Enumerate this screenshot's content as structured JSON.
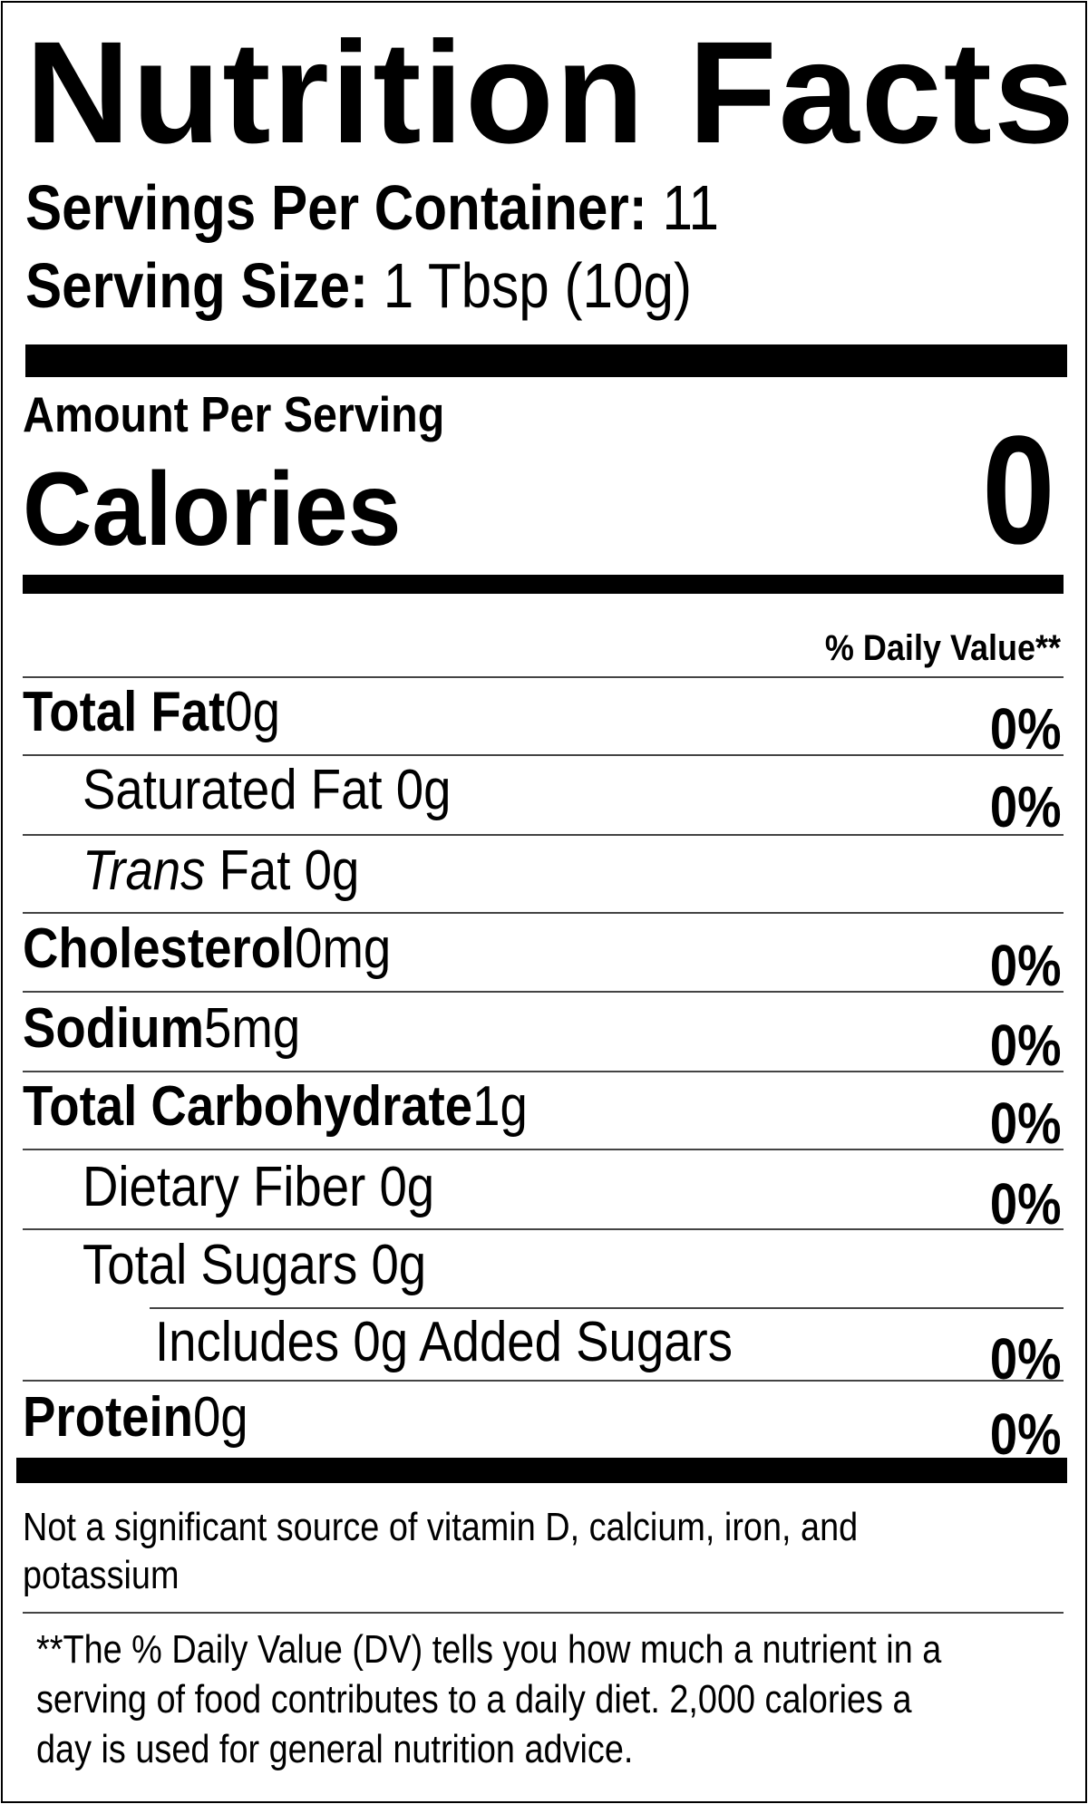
{
  "title": "Nutrition Facts",
  "servings_per_container": {
    "label": "Servings Per Container:",
    "value": "11"
  },
  "serving_size": {
    "label": "Serving Size:",
    "value": "1 Tbsp (10g)"
  },
  "amount_per_serving": "Amount Per Serving",
  "calories": {
    "label": "Calories",
    "value": "0"
  },
  "daily_value_header": "% Daily Value**",
  "nutrients": [
    {
      "name": "Total Fat",
      "amount": "0g",
      "dv": "0%"
    },
    {
      "name": "Saturated Fat",
      "amount": "0g",
      "dv": "0%"
    },
    {
      "name_italic": "Trans",
      "name": "Fat",
      "amount": "0g",
      "dv": ""
    },
    {
      "name": "Cholesterol",
      "amount": "0mg",
      "dv": "0%"
    },
    {
      "name": "Sodium",
      "amount": "5mg",
      "dv": "0%"
    },
    {
      "name": "Total Carbohydrate",
      "amount": "1g",
      "dv": "0%"
    },
    {
      "name": "Dietary Fiber",
      "amount": "0g",
      "dv": "0%"
    },
    {
      "name": "Total Sugars",
      "amount": "0g",
      "dv": ""
    },
    {
      "name": "Includes 0g Added Sugars",
      "amount": "",
      "dv": "0%"
    },
    {
      "name": "Protein",
      "amount": "0g",
      "dv": "0%"
    }
  ],
  "not_significant": [
    "Not a significant source of vitamin D, calcium, iron, and",
    "potassium"
  ],
  "footnote": [
    "**The % Daily Value (DV) tells you how much a nutrient in a",
    "serving of food contributes to a daily diet. 2,000 calories a",
    "day is used for general nutrition advice."
  ]
}
